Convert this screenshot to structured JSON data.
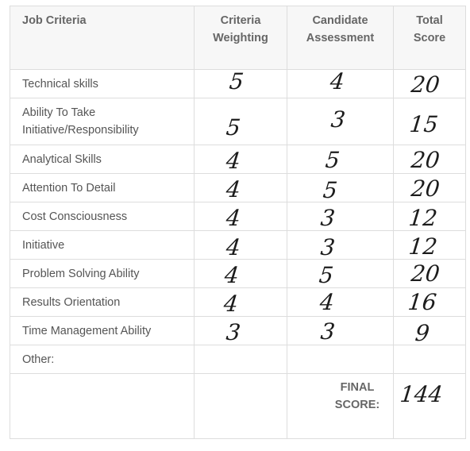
{
  "headers": {
    "criteria": "Job Criteria",
    "weighting": "Criteria Weighting",
    "assessment": "Candidate Assessment",
    "total": "Total Score"
  },
  "rows": [
    {
      "criteria": "Technical skills",
      "weighting": "5",
      "assessment": "4",
      "total": "20"
    },
    {
      "criteria": "Ability To Take Initiative/Responsibility",
      "weighting": "5",
      "assessment": "3",
      "total": "15"
    },
    {
      "criteria": "Analytical Skills",
      "weighting": "4",
      "assessment": "5",
      "total": "20"
    },
    {
      "criteria": "Attention To Detail",
      "weighting": "4",
      "assessment": "5",
      "total": "20"
    },
    {
      "criteria": "Cost Consciousness",
      "weighting": "4",
      "assessment": "3",
      "total": "12"
    },
    {
      "criteria": "Initiative",
      "weighting": "4",
      "assessment": "3",
      "total": "12"
    },
    {
      "criteria": "Problem Solving Ability",
      "weighting": "4",
      "assessment": "5",
      "total": "20"
    },
    {
      "criteria": "Results Orientation",
      "weighting": "4",
      "assessment": "4",
      "total": "16"
    },
    {
      "criteria": "Time Management Ability",
      "weighting": "3",
      "assessment": "3",
      "total": "9"
    },
    {
      "criteria": "Other:",
      "weighting": "",
      "assessment": "",
      "total": ""
    }
  ],
  "final": {
    "label": "FINAL SCORE:",
    "score": "144"
  }
}
